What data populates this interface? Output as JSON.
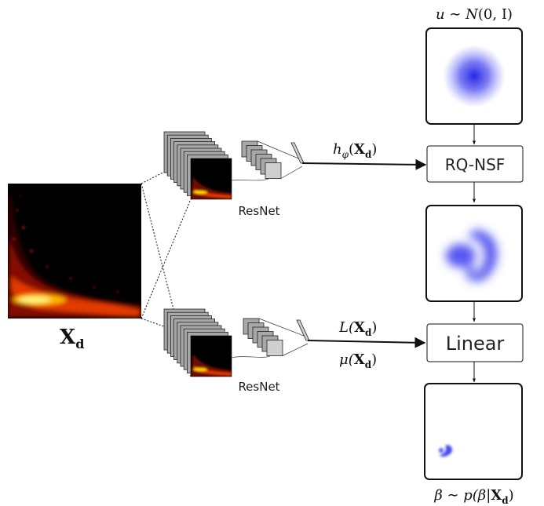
{
  "input": {
    "label_main": "X",
    "label_sub": "d"
  },
  "resnet_top": {
    "label": "ResNet"
  },
  "resnet_bottom": {
    "label": "ResNet"
  },
  "arrow_top": {
    "label_pre": "h",
    "label_sub": "φ",
    "label_arg": "X",
    "label_arg_sub": "d"
  },
  "arrow_bottom": {
    "label1_pre": "L(",
    "label1_arg": "X",
    "label1_sub": "d",
    "label2_pre": "μ(",
    "label2_arg": "X",
    "label2_sub": "d"
  },
  "latent": {
    "label_u": "u ∼ ",
    "label_N": "N",
    "label_params": "(0, I)"
  },
  "flow_box": {
    "label": "RQ-NSF"
  },
  "linear_box": {
    "label": "Linear"
  },
  "posterior": {
    "label_pre": "β ∼ p(β|",
    "label_arg": "X",
    "label_sub": "d",
    "label_post": ")"
  },
  "colors": {
    "heatmap_dark": "#000000",
    "heatmap_red": "#c01000",
    "heatmap_yellow": "#fff070",
    "density_blue": "#2a2ae8",
    "layer_gray": "#a8a8a8",
    "line": "#111111"
  }
}
